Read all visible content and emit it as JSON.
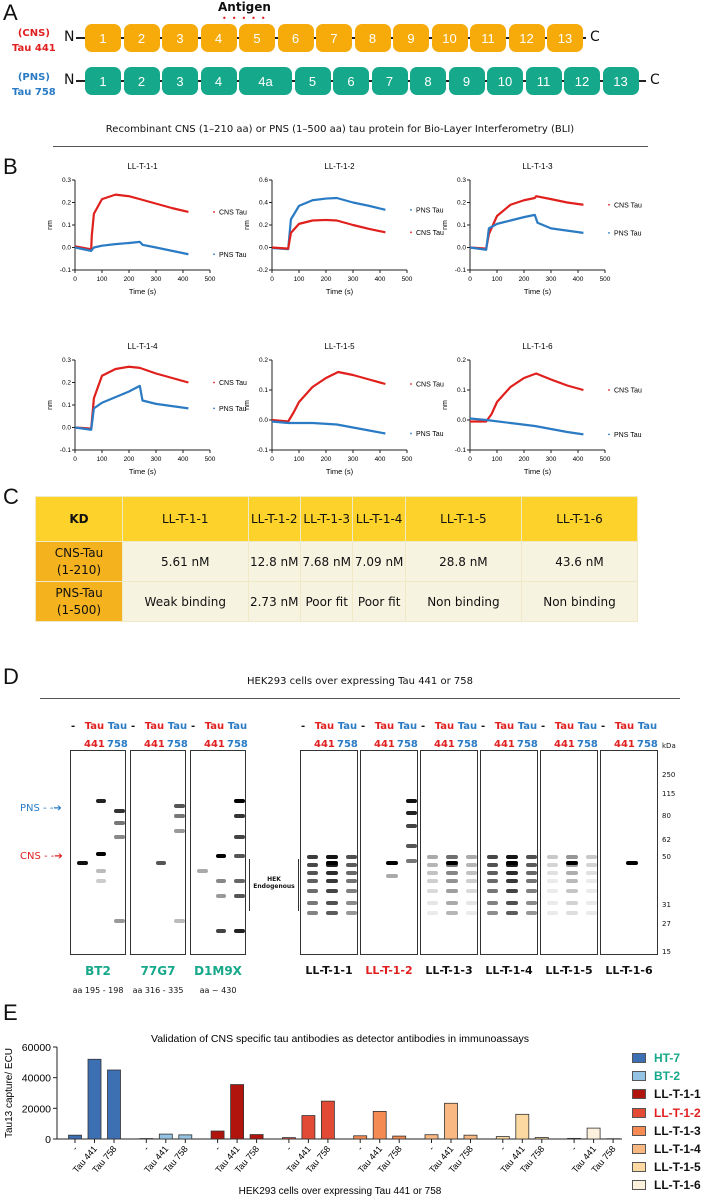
{
  "panels": {
    "a": "A",
    "b": "B",
    "c": "C",
    "d": "D",
    "e": "E"
  },
  "panel_a": {
    "antigen": "Antigen",
    "cns_tag": "(CNS)",
    "cns_name": "Tau 441",
    "pns_tag": "(PNS)",
    "pns_name": "Tau 758",
    "n": "N",
    "c": "C",
    "cns_domains": [
      "1",
      "2",
      "3",
      "4",
      "5",
      "6",
      "7",
      "8",
      "9",
      "10",
      "11",
      "12",
      "13"
    ],
    "pns_domains": [
      "1",
      "2",
      "3",
      "4",
      "4a",
      "5",
      "6",
      "7",
      "8",
      "9",
      "10",
      "11",
      "12",
      "13"
    ],
    "subtitle": "Recombinant CNS (1–210 aa) or PNS (1–500 aa) tau protein for Bio-Layer Interferometry (BLI)",
    "colors": {
      "cns": "#f7ab0a",
      "pns": "#16a88a",
      "antigen_dots": "#e02020"
    }
  },
  "chart_data": [
    {
      "type": "line",
      "title": "LL-T-1-1",
      "xlabel": "Time (s)",
      "ylabel": "nm",
      "xlim": [
        0,
        500
      ],
      "ylim": [
        -0.1,
        0.3
      ],
      "xticks": [
        "0",
        "100",
        "200",
        "300",
        "400",
        "500"
      ],
      "yticks": [
        "-0.1",
        "0.0",
        "0.1",
        "0.2",
        "0.3"
      ],
      "series": [
        {
          "name": "CNS Tau",
          "color": "#e0201c",
          "x": [
            0,
            60,
            62,
            70,
            100,
            150,
            200,
            240,
            300,
            360,
            420
          ],
          "y": [
            0.005,
            -0.008,
            0.05,
            0.15,
            0.215,
            0.235,
            0.228,
            0.215,
            0.195,
            0.175,
            0.158
          ]
        },
        {
          "name": "PNS Tau",
          "color": "#2a7bc4",
          "x": [
            0,
            60,
            70,
            100,
            150,
            200,
            240,
            250,
            300,
            360,
            420
          ],
          "y": [
            0,
            -0.015,
            0,
            0.008,
            0.015,
            0.02,
            0.025,
            0.012,
            0,
            -0.015,
            -0.03
          ]
        }
      ]
    },
    {
      "type": "line",
      "title": "LL-T-1-2",
      "xlabel": "Time (s)",
      "ylabel": "nm",
      "xlim": [
        0,
        500
      ],
      "ylim": [
        -0.2,
        0.6
      ],
      "xticks": [
        "0",
        "100",
        "200",
        "300",
        "400",
        "500"
      ],
      "yticks": [
        "-0.2",
        "0.0",
        "0.2",
        "0.4",
        "0.6"
      ],
      "series": [
        {
          "name": "PNS Tau",
          "color": "#2a7bc4",
          "x": [
            0,
            60,
            70,
            100,
            150,
            200,
            240,
            300,
            360,
            420
          ],
          "y": [
            -0.005,
            -0.015,
            0.25,
            0.37,
            0.42,
            0.435,
            0.44,
            0.4,
            0.37,
            0.335
          ]
        },
        {
          "name": "CNS Tau",
          "color": "#e0201c",
          "x": [
            0,
            60,
            70,
            100,
            150,
            200,
            240,
            300,
            360,
            420
          ],
          "y": [
            0,
            -0.01,
            0.13,
            0.21,
            0.24,
            0.245,
            0.24,
            0.2,
            0.165,
            0.135
          ]
        }
      ]
    },
    {
      "type": "line",
      "title": "LL-T-1-3",
      "xlabel": "Time (s)",
      "ylabel": "nm",
      "xlim": [
        0,
        500
      ],
      "ylim": [
        -0.1,
        0.3
      ],
      "xticks": [
        "0",
        "100",
        "200",
        "300",
        "400",
        "500"
      ],
      "yticks": [
        "-0.1",
        "0.0",
        "0.1",
        "0.2",
        "0.3"
      ],
      "series": [
        {
          "name": "CNS Tau",
          "color": "#e0201c",
          "x": [
            0,
            60,
            70,
            100,
            150,
            200,
            240,
            245,
            300,
            360,
            420
          ],
          "y": [
            0,
            -0.005,
            0.06,
            0.14,
            0.19,
            0.21,
            0.22,
            0.228,
            0.215,
            0.2,
            0.19
          ]
        },
        {
          "name": "PNS Tau",
          "color": "#2a7bc4",
          "x": [
            0,
            60,
            70,
            100,
            150,
            200,
            240,
            250,
            300,
            360,
            420
          ],
          "y": [
            0,
            -0.01,
            0.085,
            0.105,
            0.12,
            0.135,
            0.145,
            0.11,
            0.085,
            0.075,
            0.065
          ]
        }
      ]
    },
    {
      "type": "line",
      "title": "LL-T-1-4",
      "xlabel": "Time (s)",
      "ylabel": "nm",
      "xlim": [
        0,
        500
      ],
      "ylim": [
        -0.1,
        0.3
      ],
      "xticks": [
        "0",
        "100",
        "200",
        "300",
        "400",
        "500"
      ],
      "yticks": [
        "-0.1",
        "0.0",
        "0.1",
        "0.2",
        "0.3"
      ],
      "series": [
        {
          "name": "CNS Tau",
          "color": "#e0201c",
          "x": [
            0,
            60,
            70,
            100,
            150,
            200,
            240,
            300,
            360,
            420
          ],
          "y": [
            0,
            -0.005,
            0.13,
            0.23,
            0.26,
            0.27,
            0.265,
            0.24,
            0.22,
            0.2
          ]
        },
        {
          "name": "PNS Tau",
          "color": "#2a7bc4",
          "x": [
            0,
            60,
            70,
            100,
            150,
            200,
            240,
            250,
            300,
            360,
            420
          ],
          "y": [
            0,
            -0.01,
            0.085,
            0.11,
            0.135,
            0.16,
            0.185,
            0.12,
            0.105,
            0.095,
            0.085
          ]
        }
      ]
    },
    {
      "type": "line",
      "title": "LL-T-1-5",
      "xlabel": "Time (s)",
      "ylabel": "nm",
      "xlim": [
        0,
        500
      ],
      "ylim": [
        -0.1,
        0.2
      ],
      "xticks": [
        "0",
        "100",
        "200",
        "300",
        "400",
        "500"
      ],
      "yticks": [
        "-0.1",
        "0.0",
        "0.1",
        "0.2"
      ],
      "series": [
        {
          "name": "CNS Tau",
          "color": "#e0201c",
          "x": [
            0,
            60,
            80,
            100,
            150,
            200,
            245,
            300,
            360,
            420
          ],
          "y": [
            0,
            -0.005,
            0.025,
            0.06,
            0.11,
            0.14,
            0.16,
            0.15,
            0.135,
            0.12
          ]
        },
        {
          "name": "PNS Tau",
          "color": "#2a7bc4",
          "x": [
            0,
            60,
            150,
            240,
            300,
            360,
            420
          ],
          "y": [
            -0.005,
            -0.01,
            -0.01,
            -0.015,
            -0.025,
            -0.035,
            -0.045
          ]
        }
      ]
    },
    {
      "type": "line",
      "title": "LL-T-1-6",
      "xlabel": "Time (s)",
      "ylabel": "nm",
      "xlim": [
        0,
        500
      ],
      "ylim": [
        -0.1,
        0.2
      ],
      "xticks": [
        "0",
        "100",
        "200",
        "300",
        "400",
        "500"
      ],
      "yticks": [
        "-0.1",
        "0.0",
        "0.1",
        "0.2"
      ],
      "series": [
        {
          "name": "CNS Tau",
          "color": "#e0201c",
          "x": [
            0,
            60,
            80,
            100,
            150,
            200,
            245,
            300,
            360,
            420
          ],
          "y": [
            -0.005,
            -0.005,
            0.02,
            0.06,
            0.11,
            0.14,
            0.155,
            0.135,
            0.115,
            0.1
          ]
        },
        {
          "name": "PNS Tau",
          "color": "#2a7bc4",
          "x": [
            0,
            60,
            150,
            240,
            300,
            360,
            420
          ],
          "y": [
            0.005,
            0,
            -0.01,
            -0.02,
            -0.03,
            -0.04,
            -0.048
          ]
        }
      ]
    },
    {
      "type": "bar",
      "title": "Validation of CNS specific tau antibodies as detector antibodies in immunoassays",
      "xlabel": "HEK293 cells over expressing Tau 441 or 758",
      "ylabel": "Tau13 capture/ ECU",
      "ylim": [
        0,
        60000
      ],
      "yticks": [
        "0",
        "20000",
        "40000",
        "60000"
      ],
      "categories": [
        "-",
        "Tau 441",
        "Tau 758"
      ],
      "legend": "right",
      "series": [
        {
          "name": "HT-7",
          "color": "#3d6fb3",
          "label_color": "#16a88a",
          "values": [
            2500,
            52000,
            45000
          ]
        },
        {
          "name": "BT-2",
          "color": "#94c3e3",
          "label_color": "#16a88a",
          "values": [
            300,
            3200,
            2700
          ]
        },
        {
          "name": "LL-T-1-1",
          "color": "#b0140c",
          "label_color": "#111111",
          "values": [
            5200,
            35500,
            2900
          ]
        },
        {
          "name": "LL-T-1-2",
          "color": "#e24a35",
          "label_color": "#e02020",
          "values": [
            900,
            15300,
            24700
          ]
        },
        {
          "name": "LL-T-1-3",
          "color": "#f58b52",
          "label_color": "#111111",
          "values": [
            2100,
            18000,
            1900
          ]
        },
        {
          "name": "LL-T-1-4",
          "color": "#f9b782",
          "label_color": "#111111",
          "values": [
            2800,
            23300,
            2500
          ]
        },
        {
          "name": "LL-T-1-5",
          "color": "#fcd9a0",
          "label_color": "#111111",
          "values": [
            1600,
            16100,
            1000
          ]
        },
        {
          "name": "LL-T-1-6",
          "color": "#fdf0dc",
          "label_color": "#111111",
          "values": [
            400,
            7100,
            200
          ]
        }
      ]
    }
  ],
  "table": {
    "header": [
      "KD",
      "LL-T-1-1",
      "LL-T-1-2",
      "LL-T-1-3",
      "LL-T-1-4",
      "LL-T-1-5",
      "LL-T-1-6"
    ],
    "rows": [
      {
        "label1": "CNS-Tau",
        "label2": "(1-210)",
        "values": [
          "5.61 nM",
          "12.8 nM",
          "7.68 nM",
          "7.09 nM",
          "28.8 nM",
          "43.6 nM"
        ]
      },
      {
        "label1": "PNS-Tau",
        "label2": "(1-500)",
        "values": [
          "Weak binding",
          "2.73 nM",
          "Poor fit",
          "Poor fit",
          "Non binding",
          "Non binding"
        ]
      }
    ]
  },
  "panel_d": {
    "title": "HEK293 cells over expressing Tau 441 or 758",
    "lane_dash": "-",
    "lane_tau": "Tau",
    "lane_441": "441",
    "lane_758": "758",
    "pns_arrow": "PNS",
    "cns_arrow": "CNS",
    "hek_label": "HEK Endogenous",
    "kda_title": "kDa",
    "kda": [
      "250",
      "115",
      "80",
      "62",
      "50",
      "31",
      "27",
      "15"
    ],
    "left_antibodies": [
      {
        "name": "BT2",
        "epitope": "aa 195 - 198"
      },
      {
        "name": "77G7",
        "epitope": "aa 316 - 335"
      },
      {
        "name": "D1M9X",
        "epitope": "aa ~ 430"
      }
    ],
    "right_antibodies": [
      "LL-T-1-1",
      "LL-T-1-2",
      "LL-T-1-3",
      "LL-T-1-4",
      "LL-T-1-5",
      "LL-T-1-6"
    ]
  }
}
